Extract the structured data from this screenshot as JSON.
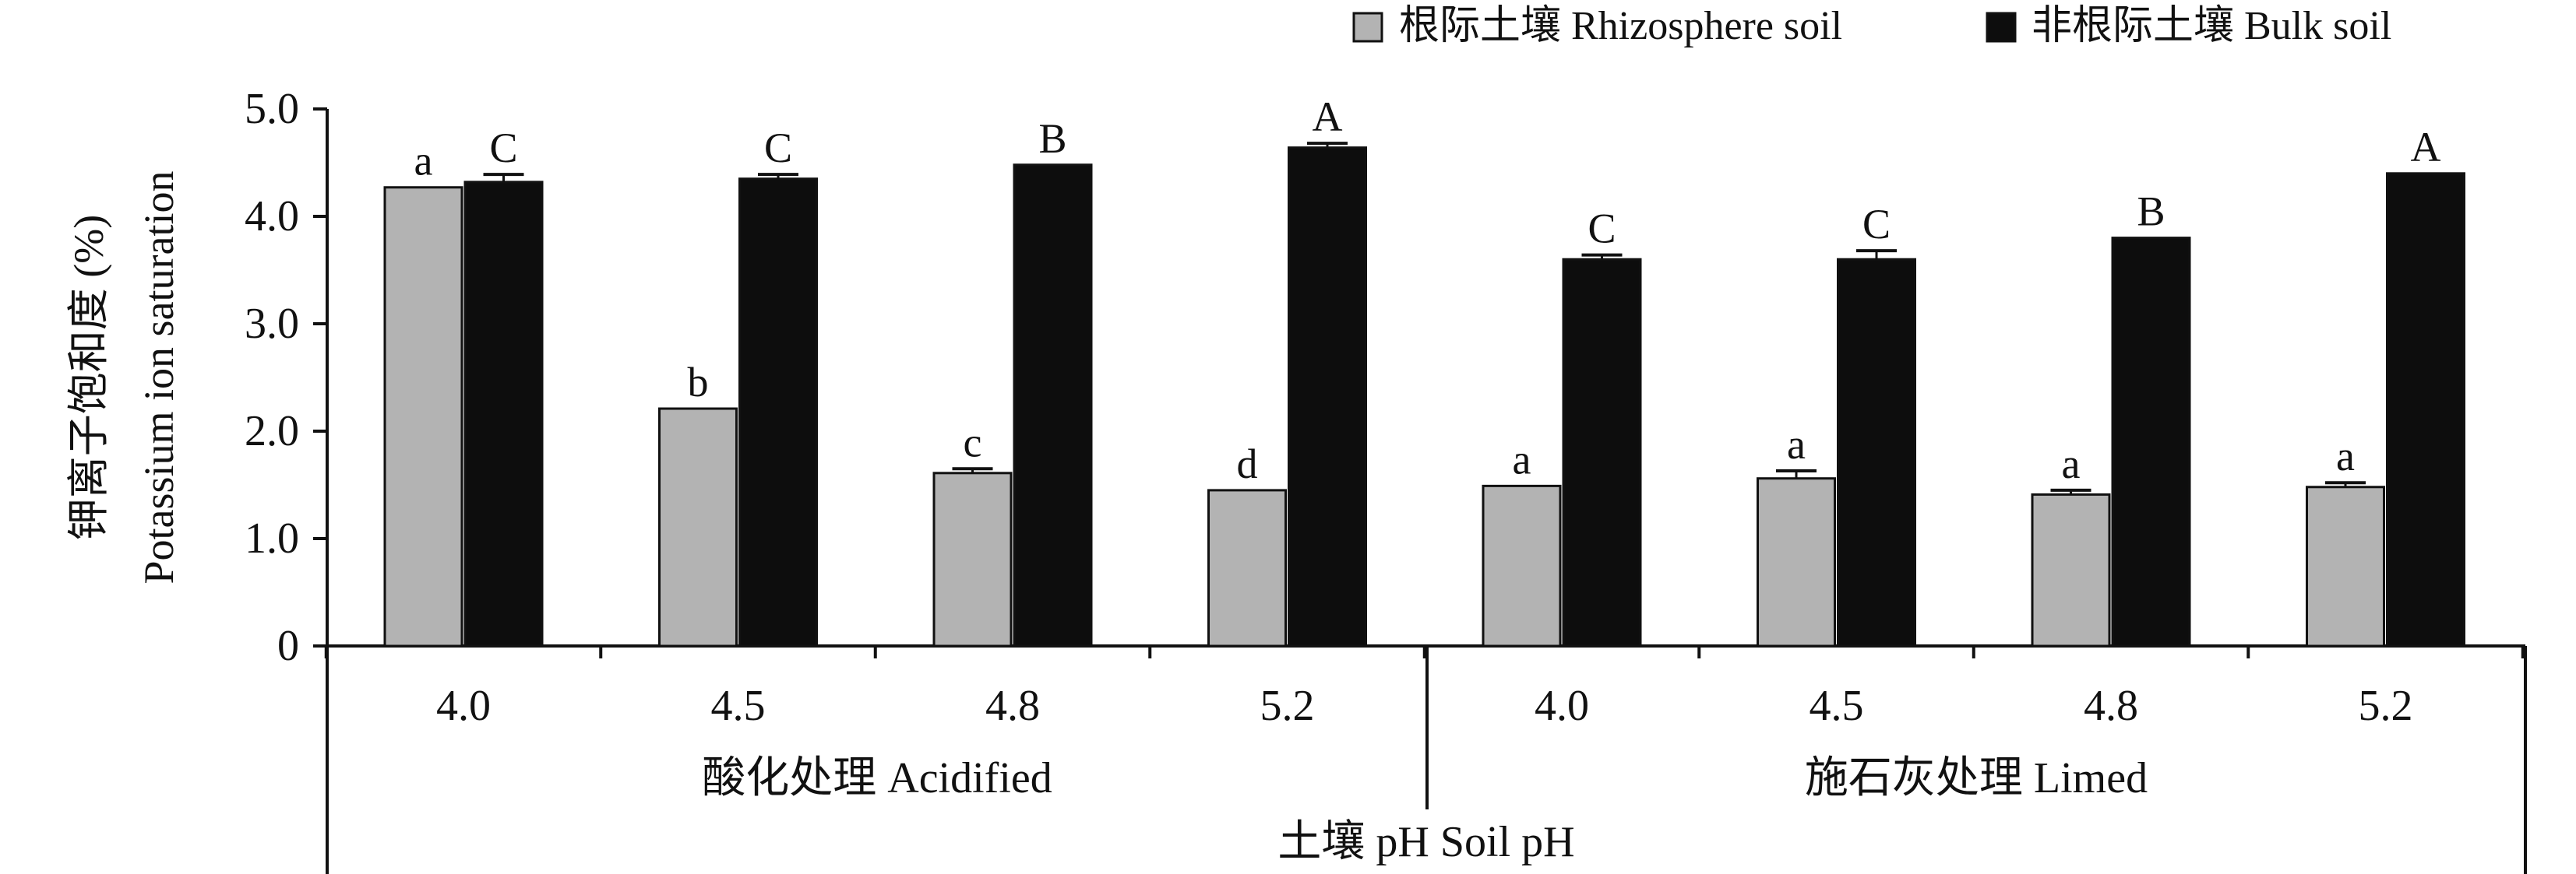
{
  "chart_data": {
    "type": "bar",
    "title": "",
    "ylabel_cn": "钾离子饱和度 (%)",
    "ylabel_en": "Potassium ion saturation",
    "xlabel": "土壤 pH Soil pH",
    "ylim": [
      0,
      5.0
    ],
    "yticks": [
      {
        "value": 0,
        "label": "0"
      },
      {
        "value": 1.0,
        "label": "1.0"
      },
      {
        "value": 2.0,
        "label": "2.0"
      },
      {
        "value": 3.0,
        "label": "3.0"
      },
      {
        "value": 4.0,
        "label": "4.0"
      },
      {
        "value": 5.0,
        "label": "5.0"
      }
    ],
    "groups": [
      {
        "label": "酸化处理 Acidified",
        "categories": [
          "4.0",
          "4.5",
          "4.8",
          "5.2"
        ]
      },
      {
        "label": "施石灰处理 Limed",
        "categories": [
          "4.0",
          "4.5",
          "4.8",
          "5.2"
        ]
      }
    ],
    "series": [
      {
        "name": "根际土壤 Rhizosphere soil",
        "color": "#b3b3b3",
        "values": [
          4.27,
          2.21,
          1.61,
          1.45,
          1.49,
          1.56,
          1.41,
          1.48
        ],
        "errors": [
          0.0,
          0.0,
          0.04,
          0.0,
          0.0,
          0.07,
          0.04,
          0.04
        ],
        "letters": [
          "a",
          "b",
          "c",
          "d",
          "a",
          "a",
          "a",
          "a"
        ]
      },
      {
        "name": "非根际土壤 Bulk soil",
        "color": "#0d0d0d",
        "values": [
          4.32,
          4.35,
          4.48,
          4.64,
          3.6,
          3.6,
          3.8,
          4.4
        ],
        "errors": [
          0.07,
          0.04,
          0.0,
          0.04,
          0.04,
          0.08,
          0.0,
          0.0
        ],
        "letters": [
          "C",
          "C",
          "B",
          "A",
          "C",
          "C",
          "B",
          "A"
        ]
      }
    ],
    "legend_position": "top-right"
  }
}
